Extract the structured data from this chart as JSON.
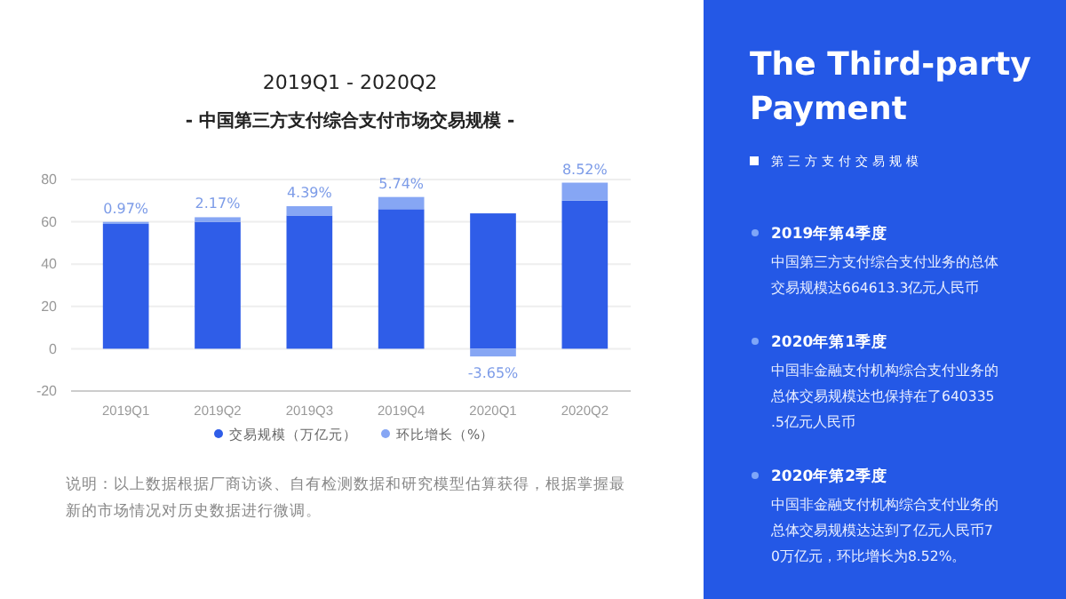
{
  "chart_data": [
    {
      "type": "bar",
      "title": "2019Q1 - 2020Q2",
      "subtitle": "- 中国第三方支付综合支付市场交易规模 -",
      "categories": [
        "2019Q1",
        "2019Q2",
        "2019Q3",
        "2019Q4",
        "2020Q1",
        "2020Q2"
      ],
      "stacked": true,
      "series": [
        {
          "name": "交易规模（万亿元）",
          "color": "#2f5de8",
          "values": [
            59,
            60,
            63,
            66,
            64,
            70
          ]
        },
        {
          "name": "环比增长（%）",
          "color": "#86a6f4",
          "values": [
            0.97,
            2.17,
            4.39,
            5.74,
            -3.65,
            8.52
          ],
          "value_labels": [
            "0.97%",
            "2.17%",
            "4.39%",
            "5.74%",
            "-3.65%",
            "8.52%"
          ]
        }
      ],
      "ylim": [
        -20,
        80
      ],
      "yticks": [
        -20,
        0,
        20,
        40,
        60,
        80
      ],
      "grid": "y",
      "legend": "bottom",
      "annotations": [
        "说明：以上数据根据厂商访谈、自有检测数据和研究模型估算获得，根据掌握最新的市场情况对历史数据进行微调。"
      ]
    },
    {
      "type": "other",
      "title": "The Third-party Payment",
      "subtitle": "第三方支付交易规模",
      "annotations": [
        "2019年第4季度",
        "中国第三方支付综合支付业务的总体交易规模达664613.3亿元人民币",
        "2020年第1季度",
        "中国非金融支付机构综合支付业务的总体交易规模达也保持在了640335.5亿元人民币",
        "2020年第2季度",
        "中国非金融支付机构综合支付业务的总体交易规模达达到了亿元人民币70万亿元，环比增长为8.52%。"
      ]
    }
  ]
}
